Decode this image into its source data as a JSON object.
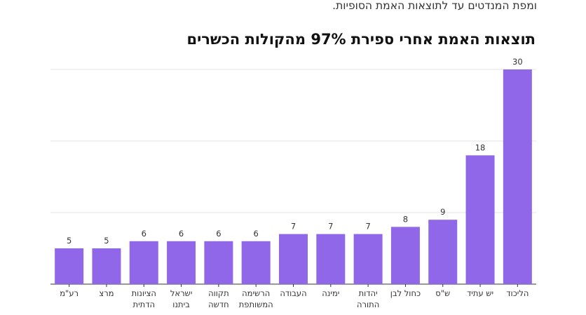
{
  "intro": "ומפת המנדטים עד לתוצאות האמת הסופיות.",
  "chart_data": {
    "type": "bar",
    "title": "תוצאות האמת אחרי ספירת 97% מהקולות הכשרים",
    "xlabel": "",
    "ylabel": "",
    "ylim": [
      0,
      30
    ],
    "grid": true,
    "color": "#8f67e8",
    "categories": [
      [
        "הליכוד"
      ],
      [
        "יש עתיד"
      ],
      [
        "ש\"ס"
      ],
      [
        "כחול לבן"
      ],
      [
        "יהדות",
        "התורה"
      ],
      [
        "ימינה"
      ],
      [
        "העבודה"
      ],
      [
        "הרשימה",
        "המשותפת"
      ],
      [
        "תקווה",
        "חדשה"
      ],
      [
        "ישראל",
        "ביתנו"
      ],
      [
        "הציונות",
        "הדתית"
      ],
      [
        "מרצ"
      ],
      [
        "רע\"מ"
      ]
    ],
    "values": [
      30,
      18,
      9,
      8,
      7,
      7,
      7,
      6,
      6,
      6,
      6,
      5,
      5
    ]
  }
}
